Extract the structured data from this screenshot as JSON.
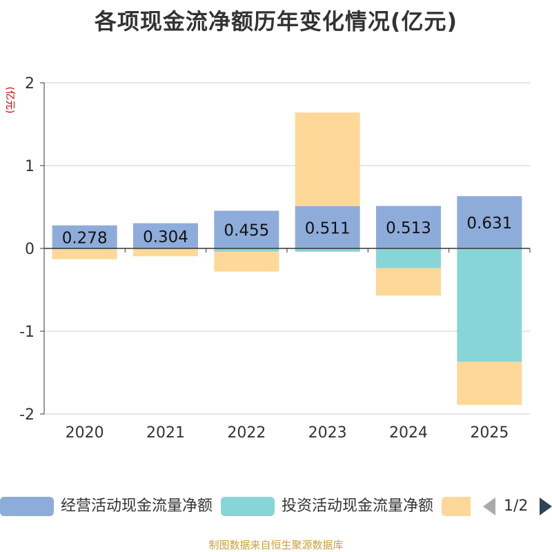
{
  "chart_data": {
    "type": "bar",
    "stacked": true,
    "title": "各项现金流净额历年变化情况(亿元)",
    "ylabel": "(亿元)",
    "xlabel": "",
    "categories": [
      "2020",
      "2021",
      "2022",
      "2023",
      "2024",
      "2025"
    ],
    "ylim": [
      -2,
      2
    ],
    "yticks": [
      2,
      1,
      0,
      -1,
      -2
    ],
    "grid": true,
    "series": [
      {
        "name": "经营活动现金流量净额",
        "color": "#8eacda",
        "values": [
          0.278,
          0.304,
          0.455,
          0.511,
          0.513,
          0.631
        ],
        "labels": [
          "0.278",
          "0.304",
          "0.455",
          "0.511",
          "0.513",
          "0.631"
        ]
      },
      {
        "name": "投资活动现金流量净额",
        "color": "#88d5d8",
        "values": [
          -0.01,
          -0.005,
          -0.04,
          -0.04,
          -0.24,
          -1.37
        ]
      },
      {
        "name": "",
        "color": "#fdd898",
        "values": [
          -0.12,
          -0.09,
          -0.24,
          1.13,
          -0.33,
          -0.52
        ]
      }
    ],
    "legend": {
      "position": "bottom",
      "page": "1/2"
    }
  },
  "source": "制图数据来自恒生聚源数据库"
}
